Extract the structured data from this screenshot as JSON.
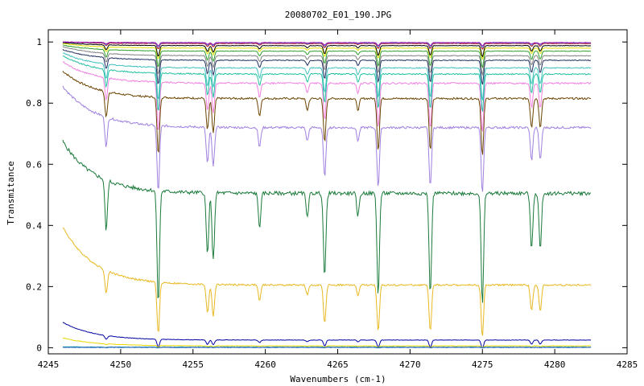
{
  "chart_data": {
    "type": "line",
    "title": "20080702_E01_190.JPG",
    "xlabel": "Wavenumbers (cm-1)",
    "ylabel": "Transmitance",
    "xlim": [
      4245,
      4285
    ],
    "ylim": [
      -0.02,
      1.04
    ],
    "xticks": [
      4245,
      4250,
      4255,
      4260,
      4265,
      4270,
      4275,
      4280,
      4285
    ],
    "ytick_labels": [
      "0",
      "0.2",
      "0.4",
      "0.6",
      "0.8",
      "1"
    ],
    "yticks": [
      0,
      0.2,
      0.4,
      0.6,
      0.8,
      1.0
    ],
    "grid": false,
    "legend": "none",
    "x_range_of_data": [
      4246.0,
      4282.5
    ],
    "absorption_lines": [
      {
        "x": 4249.0,
        "rel": 0.45
      },
      {
        "x": 4252.6,
        "rel": 1.0
      },
      {
        "x": 4256.0,
        "rel": 0.55
      },
      {
        "x": 4256.4,
        "rel": 0.6
      },
      {
        "x": 4259.6,
        "rel": 0.3
      },
      {
        "x": 4262.9,
        "rel": 0.2
      },
      {
        "x": 4264.1,
        "rel": 0.75
      },
      {
        "x": 4266.4,
        "rel": 0.2
      },
      {
        "x": 4267.8,
        "rel": 0.9
      },
      {
        "x": 4271.4,
        "rel": 0.9
      },
      {
        "x": 4275.0,
        "rel": 1.0
      },
      {
        "x": 4278.4,
        "rel": 0.5
      },
      {
        "x": 4279.0,
        "rel": 0.5
      }
    ],
    "series": [
      {
        "color": "#0000a0",
        "start": 0.083,
        "baseline": 0.025,
        "depth": 0.015
      },
      {
        "color": "#e8d800",
        "start": 0.032,
        "baseline": 0.006,
        "depth": 0.003
      },
      {
        "color": "#00a0a0",
        "start": 0.003,
        "baseline": 0.002,
        "depth": 0.001
      },
      {
        "color": "#3060c0",
        "start": 0.001,
        "baseline": 0.001,
        "depth": 0.001
      },
      {
        "color": "#e8b820",
        "start": 0.395,
        "baseline": 0.205,
        "depth": 0.095
      },
      {
        "color": "#1a7a3a",
        "start": 0.675,
        "baseline": 0.505,
        "depth": 0.205
      },
      {
        "color": "#a080e0",
        "start": 0.855,
        "baseline": 0.72,
        "depth": 0.12
      },
      {
        "color": "#6b4400",
        "start": 0.905,
        "baseline": 0.815,
        "depth": 0.105
      },
      {
        "color": "#f080e0",
        "start": 0.935,
        "baseline": 0.865,
        "depth": 0.09
      },
      {
        "color": "#20c0a0",
        "start": 0.955,
        "baseline": 0.895,
        "depth": 0.07
      },
      {
        "color": "#40c0c0",
        "start": 0.965,
        "baseline": 0.915,
        "depth": 0.06
      },
      {
        "color": "#203060",
        "start": 0.975,
        "baseline": 0.94,
        "depth": 0.045
      },
      {
        "color": "#808080",
        "start": 0.985,
        "baseline": 0.955,
        "depth": 0.035
      },
      {
        "color": "#30a030",
        "start": 0.99,
        "baseline": 0.97,
        "depth": 0.03
      },
      {
        "color": "#e0e000",
        "start": 0.995,
        "baseline": 0.98,
        "depth": 0.02
      },
      {
        "color": "#000000",
        "start": 0.998,
        "baseline": 0.988,
        "depth": 0.02
      },
      {
        "color": "#c00000",
        "start": 1.0,
        "baseline": 0.995,
        "depth": 0.01
      },
      {
        "color": "#40a0ff",
        "start": 1.0,
        "baseline": 0.997,
        "depth": 0.008
      },
      {
        "color": "#a000a0",
        "start": 1.0,
        "baseline": 0.998,
        "depth": 0.006
      }
    ]
  }
}
